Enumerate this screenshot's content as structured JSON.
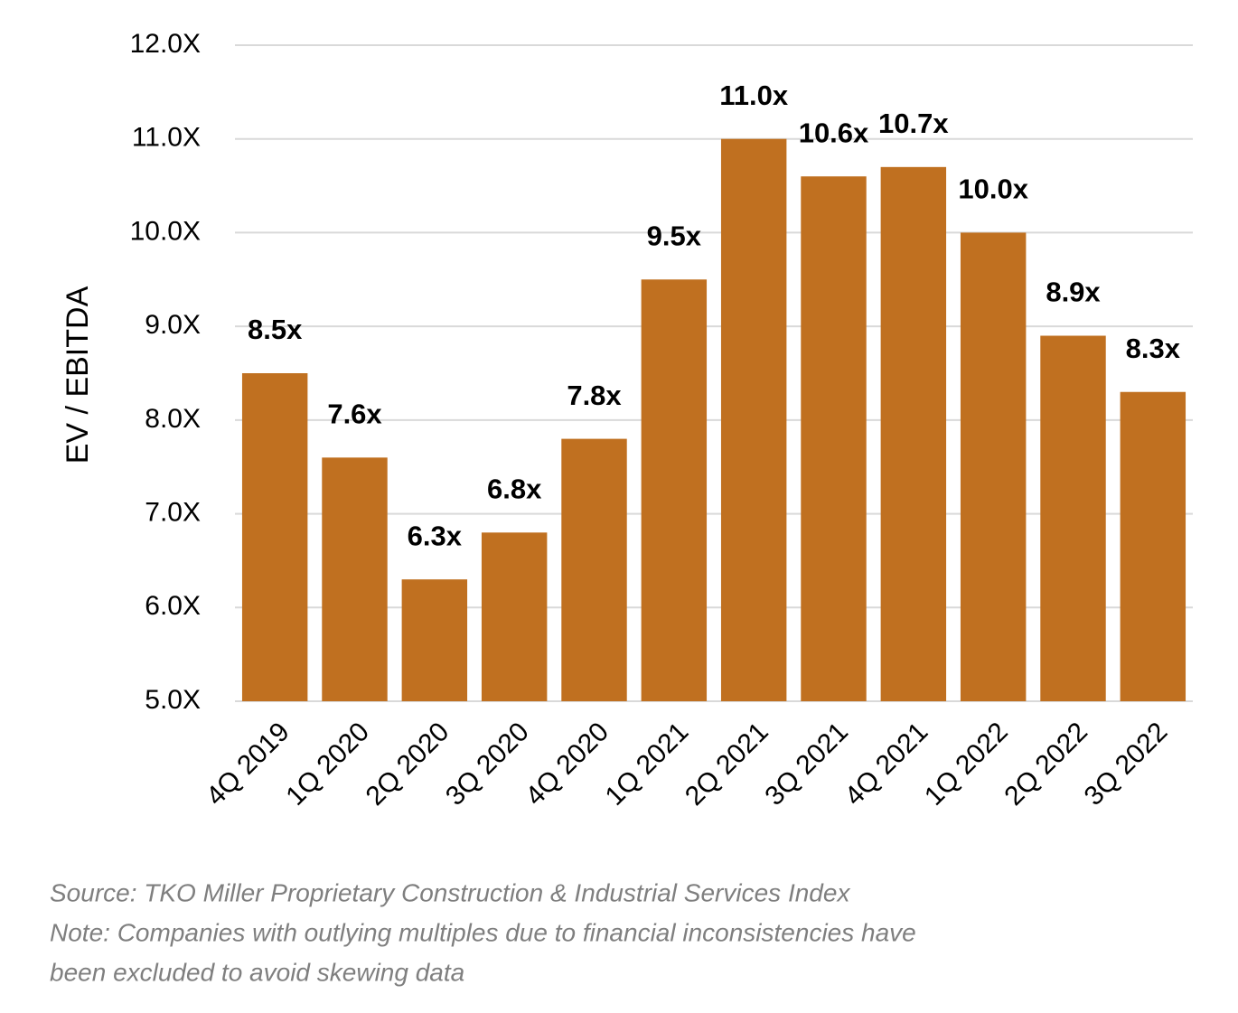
{
  "chart_data": {
    "type": "bar",
    "y_label": "EV / EBITDA",
    "categories": [
      "4Q 2019",
      "1Q 2020",
      "2Q 2020",
      "3Q 2020",
      "4Q 2020",
      "1Q 2021",
      "2Q 2021",
      "3Q 2021",
      "4Q 2021",
      "1Q 2022",
      "2Q 2022",
      "3Q 2022"
    ],
    "values": [
      8.5,
      7.6,
      6.3,
      6.8,
      7.8,
      9.5,
      11.0,
      10.6,
      10.7,
      10.0,
      8.9,
      8.3
    ],
    "value_labels": [
      "8.5x",
      "7.6x",
      "6.3x",
      "6.8x",
      "7.8x",
      "9.5x",
      "11.0x",
      "10.6x",
      "10.7x",
      "10.0x",
      "8.9x",
      "8.3x"
    ],
    "color": "#c07020",
    "ylim": [
      5,
      12
    ],
    "yticks": [
      {
        "value": 5,
        "label": "5.0X"
      },
      {
        "value": 6,
        "label": "6.0X"
      },
      {
        "value": 7,
        "label": "7.0X"
      },
      {
        "value": 8,
        "label": "8.0X"
      },
      {
        "value": 9,
        "label": "9.0X"
      },
      {
        "value": 10,
        "label": "10.0X"
      },
      {
        "value": 11,
        "label": "11.0X"
      },
      {
        "value": 12,
        "label": "12.0X"
      }
    ],
    "grid": true,
    "notes": [
      "Source: TKO Miller Proprietary Construction & Industrial Services Index",
      "Note: Companies with outlying multiples due to financial inconsistencies have",
      "been excluded to avoid skewing data"
    ]
  }
}
